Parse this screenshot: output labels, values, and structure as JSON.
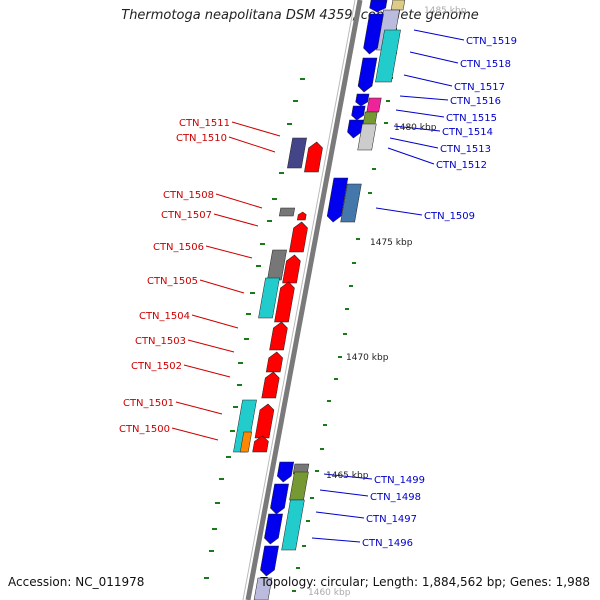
{
  "title": "Thermotoga neapolitana DSM 4359, complete genome",
  "accession": "Accession: NC_011978",
  "topology": "Topology: circular; Length: 1,884,562 bp; Genes: 1,988",
  "colors": {
    "backbone": "#7a7a7a",
    "label_forward": "#cc0000",
    "label_reverse": "#0000cc",
    "tick": "#1a7a1a",
    "forward_gene": "#ff0000",
    "reverse_gene": "#0000ee",
    "cyan": "#22cccc",
    "gray": "#777777",
    "olive": "#779933",
    "magenta": "#ee2299",
    "orange": "#ff8800",
    "steel": "#4477aa",
    "indigo": "#444488"
  },
  "kbp_labels": [
    "1485 kbp",
    "1480 kbp",
    "1475 kbp",
    "1470 kbp",
    "1465 kbp",
    "1460 kbp"
  ],
  "genes_left": [
    "CTN_1511",
    "CTN_1510",
    "CTN_1508",
    "CTN_1507",
    "CTN_1506",
    "CTN_1505",
    "CTN_1504",
    "CTN_1503",
    "CTN_1502",
    "CTN_1501",
    "CTN_1500"
  ],
  "genes_right": [
    "CTN_1519",
    "CTN_1518",
    "CTN_1517",
    "CTN_1516",
    "CTN_1515",
    "CTN_1514",
    "CTN_1513",
    "CTN_1512",
    "CTN_1509",
    "CTN_1499",
    "CTN_1498",
    "CTN_1497",
    "CTN_1496"
  ]
}
